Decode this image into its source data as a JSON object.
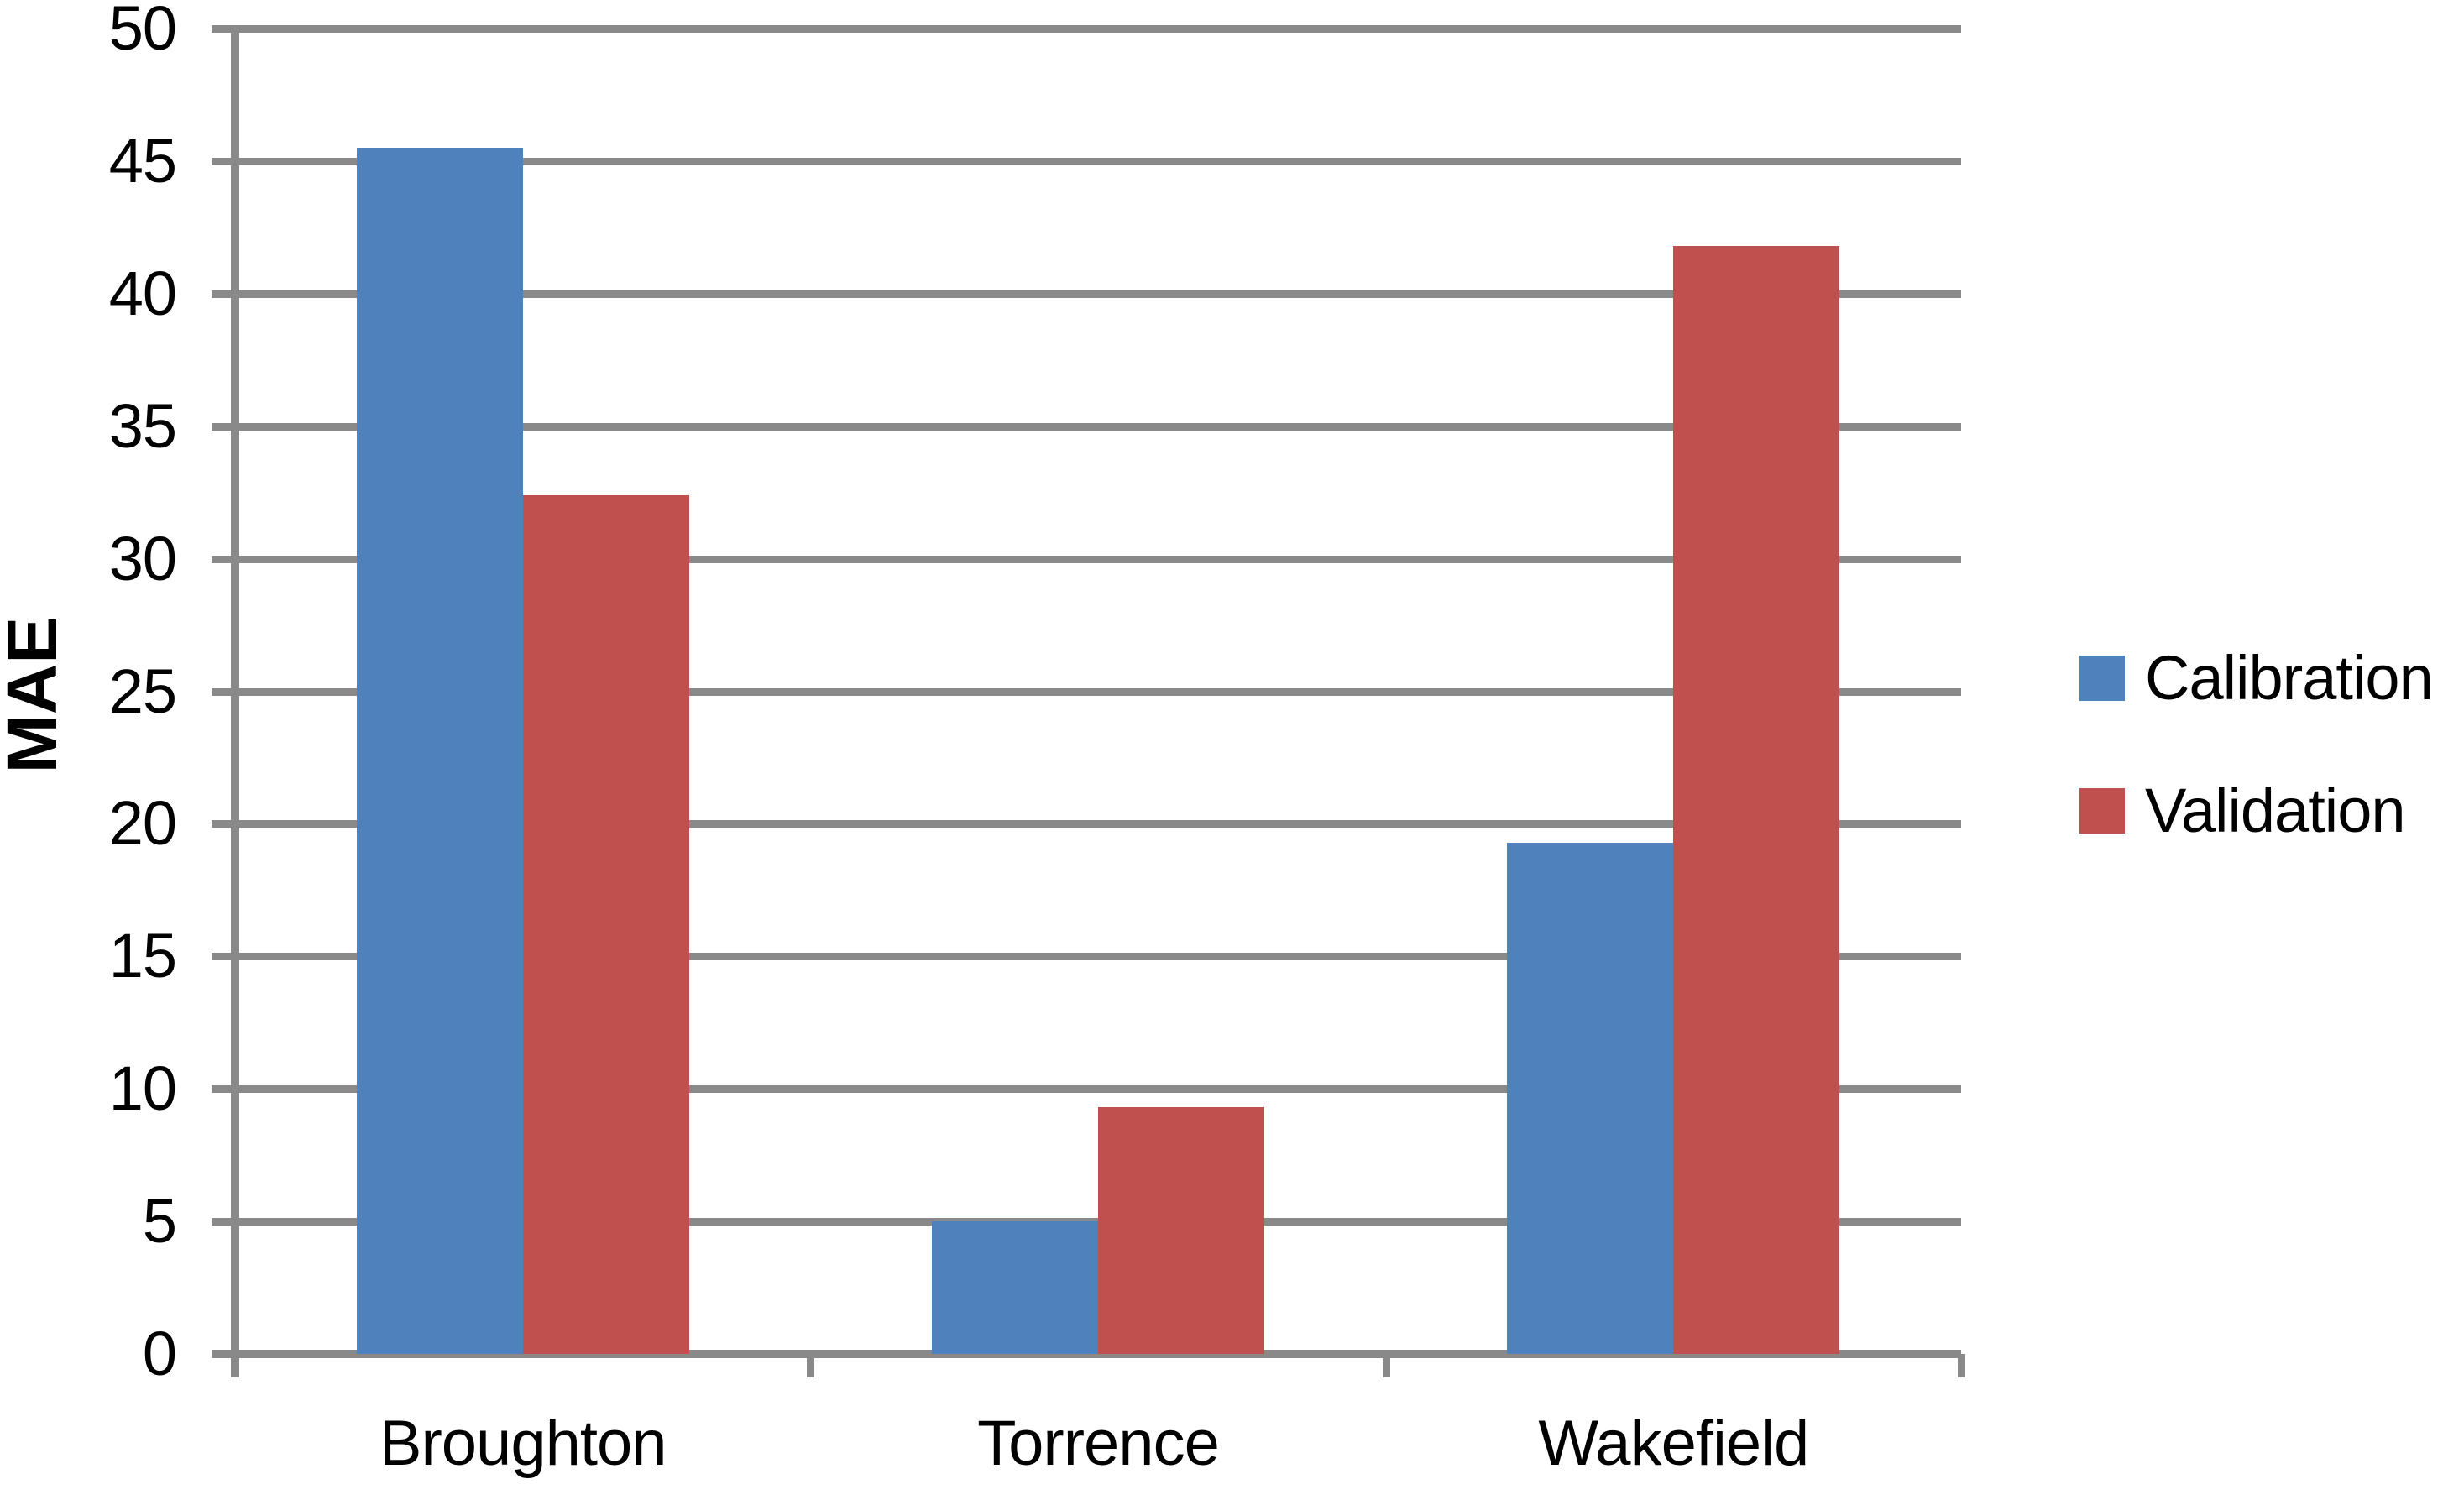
{
  "chart_data": {
    "type": "bar",
    "title": "",
    "xlabel": "",
    "ylabel": "MAE",
    "ylim": [
      0,
      50
    ],
    "ytick_step": 5,
    "y_tick_labels": [
      "0",
      "5",
      "10",
      "15",
      "20",
      "25",
      "30",
      "35",
      "40",
      "45",
      "50"
    ],
    "categories": [
      "Broughton",
      "Torrence",
      "Wakefield"
    ],
    "series": [
      {
        "name": "Calibration",
        "color": "#4F81BD",
        "values": [
          45.5,
          5.0,
          19.3
        ]
      },
      {
        "name": "Validation",
        "color": "#C0504D",
        "values": [
          32.4,
          9.3,
          41.8
        ]
      }
    ],
    "legend_position": "right",
    "grid": "horizontal",
    "gridline_color": "#898989",
    "axis_color": "#898989",
    "background": "#FFFFFF",
    "text_color": "#000000"
  }
}
